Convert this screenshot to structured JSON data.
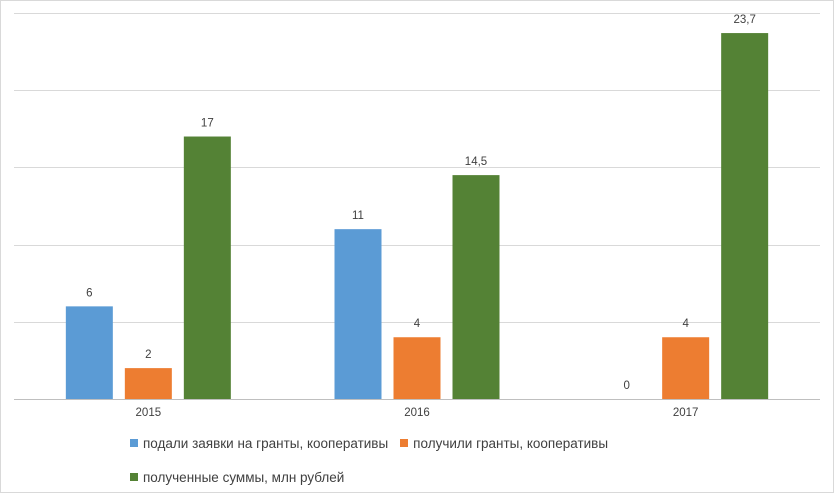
{
  "chart_data": {
    "type": "bar",
    "categories": [
      "2015",
      "2016",
      "2017"
    ],
    "series": [
      {
        "name": "подали заявки на гранты, кооперативы",
        "values": [
          6,
          11,
          0
        ],
        "labels": [
          "6",
          "11",
          "0"
        ],
        "color": "#5b9bd5"
      },
      {
        "name": "получили гранты, кооперативы",
        "values": [
          2,
          4,
          4
        ],
        "labels": [
          "2",
          "4",
          "4"
        ],
        "color": "#ed7d31"
      },
      {
        "name": "полученные суммы, млн рублей",
        "values": [
          17,
          14.5,
          23.7
        ],
        "labels": [
          "17",
          "14,5",
          "23,7"
        ],
        "color": "#548235"
      }
    ],
    "ylim": [
      0,
      25
    ],
    "y_gridlines": [
      0,
      5,
      10,
      15,
      20,
      25
    ],
    "y_tick_labels_shown": false,
    "grid": true,
    "legend_position": "bottom"
  }
}
